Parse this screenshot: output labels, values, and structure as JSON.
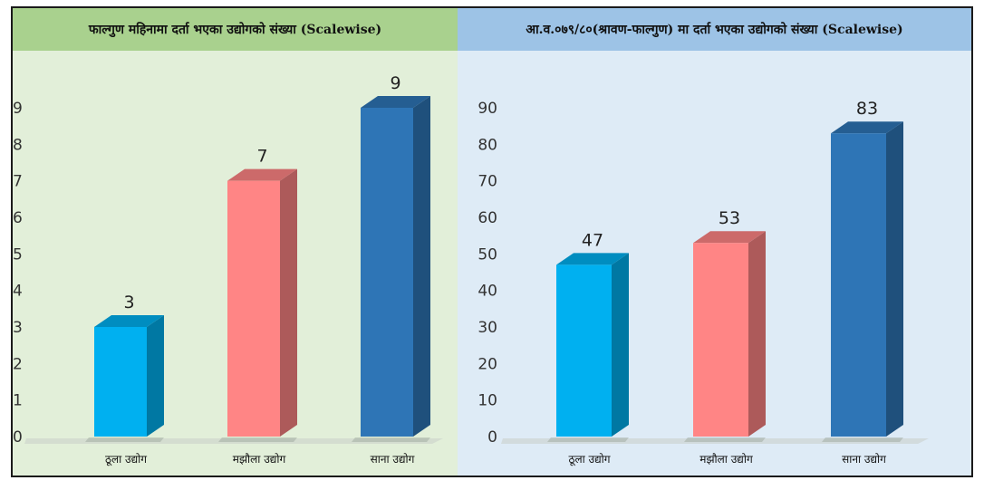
{
  "chart_data": [
    {
      "type": "bar",
      "title": "फाल्गुण महिनामा दर्ता भएका उद्योगको संख्या (Scalewise)",
      "categories": [
        "ठूला उद्योग",
        "मझौला उद्योग",
        "साना उद्योग"
      ],
      "values": [
        3,
        7,
        9
      ],
      "data_labels": [
        "3",
        "7",
        "9"
      ],
      "ylim": [
        0,
        9
      ],
      "yticks": [
        0,
        1,
        2,
        3,
        4,
        5,
        6,
        7,
        8,
        9
      ],
      "colors": [
        "#00b0f0",
        "#ff8585",
        "#2e75b6"
      ],
      "header_color": "#a9d18e",
      "background_color": "#e2efd9",
      "grid": false,
      "style": "3d-bar"
    },
    {
      "type": "bar",
      "title": "आ.व.०७९/८०(श्रावण-फाल्गुण) मा दर्ता भएका उद्योगको संख्या (Scalewise)",
      "categories": [
        "ठूला उद्योग",
        "मझौला उद्योग",
        "साना उद्योग"
      ],
      "values": [
        47,
        53,
        83
      ],
      "data_labels": [
        "47",
        "53",
        "83"
      ],
      "ylim": [
        0,
        90
      ],
      "yticks": [
        0,
        10,
        20,
        30,
        40,
        50,
        60,
        70,
        80,
        90
      ],
      "colors": [
        "#00b0f0",
        "#ff8585",
        "#2e75b6"
      ],
      "header_color": "#9dc3e6",
      "background_color": "#deebf6",
      "grid": false,
      "style": "3d-bar"
    }
  ]
}
